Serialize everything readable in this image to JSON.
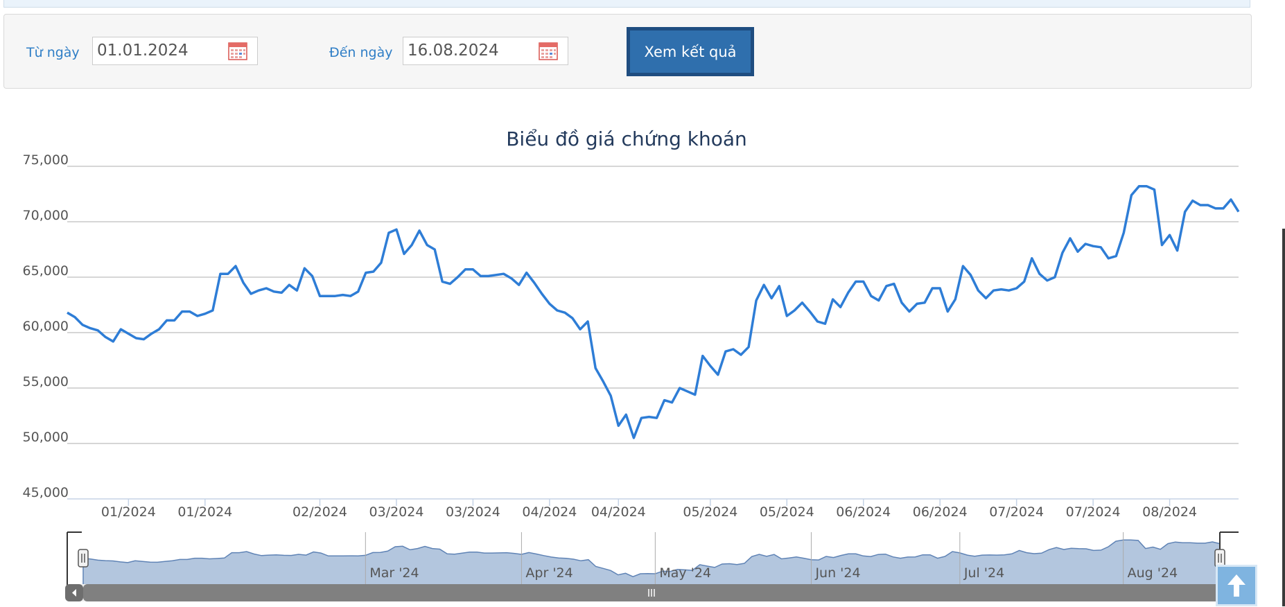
{
  "filter": {
    "from_label": "Từ ngày",
    "from_value": "01.01.2024",
    "to_label": "Đến ngày",
    "to_value": "16.08.2024",
    "submit_label": "Xem kết quả"
  },
  "chart_data": {
    "type": "line",
    "title": "Biểu đồ giá chứng khoán",
    "xlabel": "",
    "ylabel": "",
    "ylim": [
      45000,
      75000
    ],
    "yticks": [
      45000,
      50000,
      55000,
      60000,
      65000,
      70000,
      75000
    ],
    "ytick_labels": [
      "45,000",
      "50,000",
      "55,000",
      "60,000",
      "65,000",
      "70,000",
      "75,000"
    ],
    "x_tick_labels": [
      "01/2024",
      "01/2024",
      "02/2024",
      "03/2024",
      "03/2024",
      "04/2024",
      "04/2024",
      "05/2024",
      "05/2024",
      "06/2024",
      "06/2024",
      "07/2024",
      "07/2024",
      "08/2024"
    ],
    "x_tick_positions": [
      8,
      18,
      33,
      43,
      53,
      63,
      72,
      84,
      94,
      104,
      114,
      124,
      134,
      144
    ],
    "grid": true,
    "color": "#2e7dd6",
    "series": [
      {
        "values": [
          61800,
          61400,
          60700,
          60400,
          60200,
          59600,
          59200,
          60300,
          59900,
          59500,
          59400,
          59900,
          60300,
          61100,
          61100,
          61900,
          61900,
          61500,
          61700,
          62000,
          65300,
          65300,
          66000,
          64500,
          63500,
          63800,
          64000,
          63700,
          63600,
          64300,
          63800,
          65800,
          65100,
          63300,
          63300,
          63300,
          63400,
          63300,
          63700,
          65400,
          65500,
          66300,
          69000,
          69300,
          67100,
          67900,
          69200,
          67900,
          67500,
          64600,
          64400,
          65000,
          65700,
          65700,
          65100,
          65100,
          65200,
          65300,
          64900,
          64300,
          65400,
          64500,
          63500,
          62600,
          62000,
          61800,
          61300,
          60300,
          61000,
          56800,
          55600,
          54300,
          51600,
          52600,
          50500,
          52300,
          52400,
          52300,
          53900,
          53700,
          55000,
          54700,
          54400,
          57900,
          57000,
          56200,
          58300,
          58500,
          58000,
          58700,
          62900,
          64300,
          63100,
          64200,
          61500,
          62000,
          62700,
          61900,
          61000,
          60800,
          63000,
          62300,
          63600,
          64600,
          64600,
          63300,
          62900,
          64200,
          64400,
          62700,
          61900,
          62600,
          62700,
          64000,
          64000,
          61900,
          63000,
          66000,
          65200,
          63800,
          63100,
          63800,
          63900,
          63800,
          64000,
          64600,
          66700,
          65300,
          64700,
          65000,
          67200,
          68500,
          67300,
          68000,
          67800,
          67700,
          66700,
          66900,
          69000,
          72400,
          73200,
          73200,
          72900,
          67900,
          68800,
          67400,
          70900,
          71900,
          71500,
          71500,
          71200,
          71200,
          72000,
          70900
        ]
      }
    ],
    "navigator": {
      "month_labels": [
        "Mar '24",
        "Apr '24",
        "May '24",
        "Jun '24",
        "Jul '24",
        "Aug '24"
      ],
      "month_positions": [
        38,
        59,
        77,
        98,
        118,
        140
      ]
    }
  }
}
